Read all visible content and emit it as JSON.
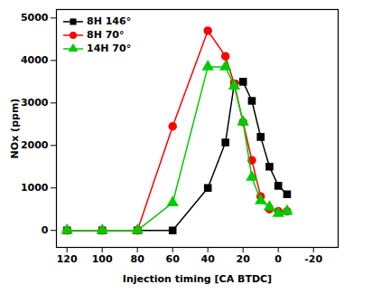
{
  "chart_data": {
    "type": "line",
    "x_label": "Injection timing [CA BTDC]",
    "y_label": "NOx (ppm)",
    "xlim": [
      126,
      -34
    ],
    "xticks": [
      120,
      100,
      80,
      60,
      40,
      20,
      0,
      -20
    ],
    "ylim": [
      -400,
      5200
    ],
    "yticks": [
      0,
      1000,
      2000,
      3000,
      4000,
      5000
    ],
    "grid": false,
    "legend": "upper left",
    "x": [
      120,
      100,
      80,
      60,
      40,
      30,
      25,
      20,
      15,
      10,
      5,
      0,
      -5
    ],
    "series": [
      {
        "name": "8H 146°",
        "color": "#000000",
        "marker": "square",
        "values": [
          0,
          0,
          0,
          0,
          1000,
          2070,
          3450,
          3500,
          3050,
          2200,
          1500,
          1050,
          850
        ]
      },
      {
        "name": "8H 70°",
        "color": "#ff0000",
        "marker": "circle",
        "values": [
          0,
          0,
          0,
          2450,
          4700,
          4100,
          3450,
          2550,
          1650,
          800,
          500,
          450,
          450
        ]
      },
      {
        "name": "14H 70°",
        "color": "#00cc00",
        "marker": "triangle",
        "values": [
          0,
          0,
          0,
          650,
          3850,
          3850,
          3400,
          2550,
          1250,
          700,
          550,
          400,
          450
        ]
      }
    ]
  }
}
